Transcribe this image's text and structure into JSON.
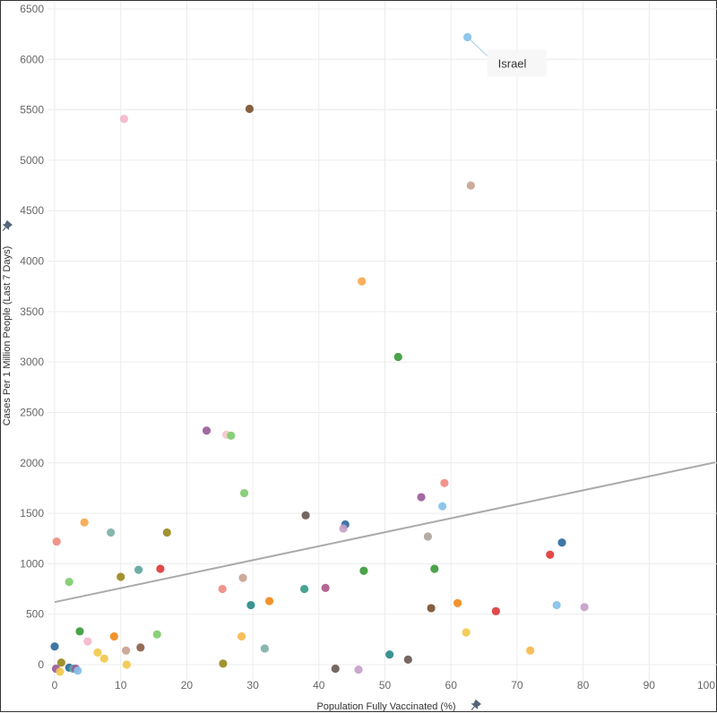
{
  "chart_data": {
    "type": "scatter",
    "title": "",
    "xlabel": "Population Fully Vaccinated (%)",
    "ylabel": "Cases Per 1 Million People (Last 7 Days)",
    "xlim": [
      0,
      100
    ],
    "ylim": [
      0,
      6500
    ],
    "x_ticks": [
      0,
      10,
      20,
      30,
      40,
      50,
      60,
      70,
      80,
      90,
      100
    ],
    "y_ticks": [
      0,
      500,
      1000,
      1500,
      2000,
      2500,
      3000,
      3500,
      4000,
      4500,
      5000,
      5500,
      6000,
      6500
    ],
    "grid": true,
    "legend": "none",
    "trend_line": {
      "x": [
        0,
        100
      ],
      "y": [
        620,
        2005
      ],
      "color": "#aaaaaa"
    },
    "annotations": [
      {
        "text": "Israel",
        "x": 62.5,
        "y": 6220
      }
    ],
    "points": [
      {
        "x": 62.5,
        "y": 6220,
        "color": "#85c1e9"
      },
      {
        "x": 10.5,
        "y": 5410,
        "color": "#f5b6cd"
      },
      {
        "x": 29.5,
        "y": 5510,
        "color": "#7b5232"
      },
      {
        "x": 63.0,
        "y": 4750,
        "color": "#c9a391"
      },
      {
        "x": 46.5,
        "y": 3800,
        "color": "#f7a84d"
      },
      {
        "x": 52.0,
        "y": 3050,
        "color": "#3a9b3a"
      },
      {
        "x": 23.0,
        "y": 2320,
        "color": "#9a5c9a"
      },
      {
        "x": 26.0,
        "y": 2280,
        "color": "#f2c7c7"
      },
      {
        "x": 26.7,
        "y": 2270,
        "color": "#7fcc6e"
      },
      {
        "x": 59.0,
        "y": 1800,
        "color": "#f28b82"
      },
      {
        "x": 28.7,
        "y": 1700,
        "color": "#7fcc6e"
      },
      {
        "x": 55.5,
        "y": 1660,
        "color": "#9a5c9a"
      },
      {
        "x": 58.7,
        "y": 1570,
        "color": "#85c1e9"
      },
      {
        "x": 38.0,
        "y": 1480,
        "color": "#6b5a54"
      },
      {
        "x": 4.5,
        "y": 1410,
        "color": "#f7a84d"
      },
      {
        "x": 44.0,
        "y": 1390,
        "color": "#2e6a9e"
      },
      {
        "x": 43.7,
        "y": 1350,
        "color": "#c59fc7"
      },
      {
        "x": 8.5,
        "y": 1310,
        "color": "#7fb0a8"
      },
      {
        "x": 17.0,
        "y": 1310,
        "color": "#9a8a20"
      },
      {
        "x": 56.5,
        "y": 1270,
        "color": "#b0a39c"
      },
      {
        "x": 0.3,
        "y": 1220,
        "color": "#f28b82"
      },
      {
        "x": 76.8,
        "y": 1210,
        "color": "#2e6a9e"
      },
      {
        "x": 75.0,
        "y": 1090,
        "color": "#e03a3a"
      },
      {
        "x": 16.0,
        "y": 950,
        "color": "#e03a3a"
      },
      {
        "x": 12.7,
        "y": 940,
        "color": "#5fa89f"
      },
      {
        "x": 57.5,
        "y": 950,
        "color": "#3a9b3a"
      },
      {
        "x": 46.8,
        "y": 930,
        "color": "#3a9b3a"
      },
      {
        "x": 10.0,
        "y": 870,
        "color": "#9a8a20"
      },
      {
        "x": 28.5,
        "y": 860,
        "color": "#c9a391"
      },
      {
        "x": 2.2,
        "y": 820,
        "color": "#7fcc6e"
      },
      {
        "x": 41.0,
        "y": 760,
        "color": "#b05a8a"
      },
      {
        "x": 25.4,
        "y": 750,
        "color": "#f28b82"
      },
      {
        "x": 37.8,
        "y": 750,
        "color": "#3a9b8a"
      },
      {
        "x": 32.5,
        "y": 630,
        "color": "#f28a1a"
      },
      {
        "x": 61.0,
        "y": 610,
        "color": "#f28a1a"
      },
      {
        "x": 29.7,
        "y": 590,
        "color": "#2a8a8a"
      },
      {
        "x": 76.0,
        "y": 590,
        "color": "#85c1e9"
      },
      {
        "x": 80.2,
        "y": 570,
        "color": "#c59fc7"
      },
      {
        "x": 57.0,
        "y": 560,
        "color": "#7b5232"
      },
      {
        "x": 66.8,
        "y": 530,
        "color": "#e03a3a"
      },
      {
        "x": 3.8,
        "y": 330,
        "color": "#3a9b3a"
      },
      {
        "x": 62.3,
        "y": 320,
        "color": "#f2c94c"
      },
      {
        "x": 15.5,
        "y": 300,
        "color": "#7fcc6e"
      },
      {
        "x": 9.0,
        "y": 280,
        "color": "#f28a1a"
      },
      {
        "x": 28.3,
        "y": 280,
        "color": "#f7b84d"
      },
      {
        "x": 5.0,
        "y": 230,
        "color": "#f5b6cd"
      },
      {
        "x": 0.0,
        "y": 180,
        "color": "#2e6a9e"
      },
      {
        "x": 13.0,
        "y": 170,
        "color": "#8b5e4a"
      },
      {
        "x": 31.8,
        "y": 160,
        "color": "#7fb0a8"
      },
      {
        "x": 10.8,
        "y": 140,
        "color": "#c9a391"
      },
      {
        "x": 72.0,
        "y": 140,
        "color": "#f7b84d"
      },
      {
        "x": 6.5,
        "y": 120,
        "color": "#f2c94c"
      },
      {
        "x": 50.7,
        "y": 100,
        "color": "#2a8a8a"
      },
      {
        "x": 7.5,
        "y": 60,
        "color": "#f2c94c"
      },
      {
        "x": 53.5,
        "y": 50,
        "color": "#6b5a54"
      },
      {
        "x": 1.0,
        "y": 20,
        "color": "#9a8a20"
      },
      {
        "x": 25.5,
        "y": 10,
        "color": "#9a8a20"
      },
      {
        "x": 10.9,
        "y": 0,
        "color": "#f2c94c"
      },
      {
        "x": 2.2,
        "y": -30,
        "color": "#2e6a9e"
      },
      {
        "x": 2.8,
        "y": -40,
        "color": "#5fa89f"
      },
      {
        "x": 3.2,
        "y": -40,
        "color": "#9a5c9a"
      },
      {
        "x": 0.2,
        "y": -40,
        "color": "#9a5c9a"
      },
      {
        "x": 42.5,
        "y": -40,
        "color": "#6b5a54"
      },
      {
        "x": 46.0,
        "y": -50,
        "color": "#c59fc7"
      },
      {
        "x": 3.5,
        "y": -60,
        "color": "#85c1e9"
      },
      {
        "x": 0.8,
        "y": -70,
        "color": "#f2c94c"
      }
    ]
  }
}
